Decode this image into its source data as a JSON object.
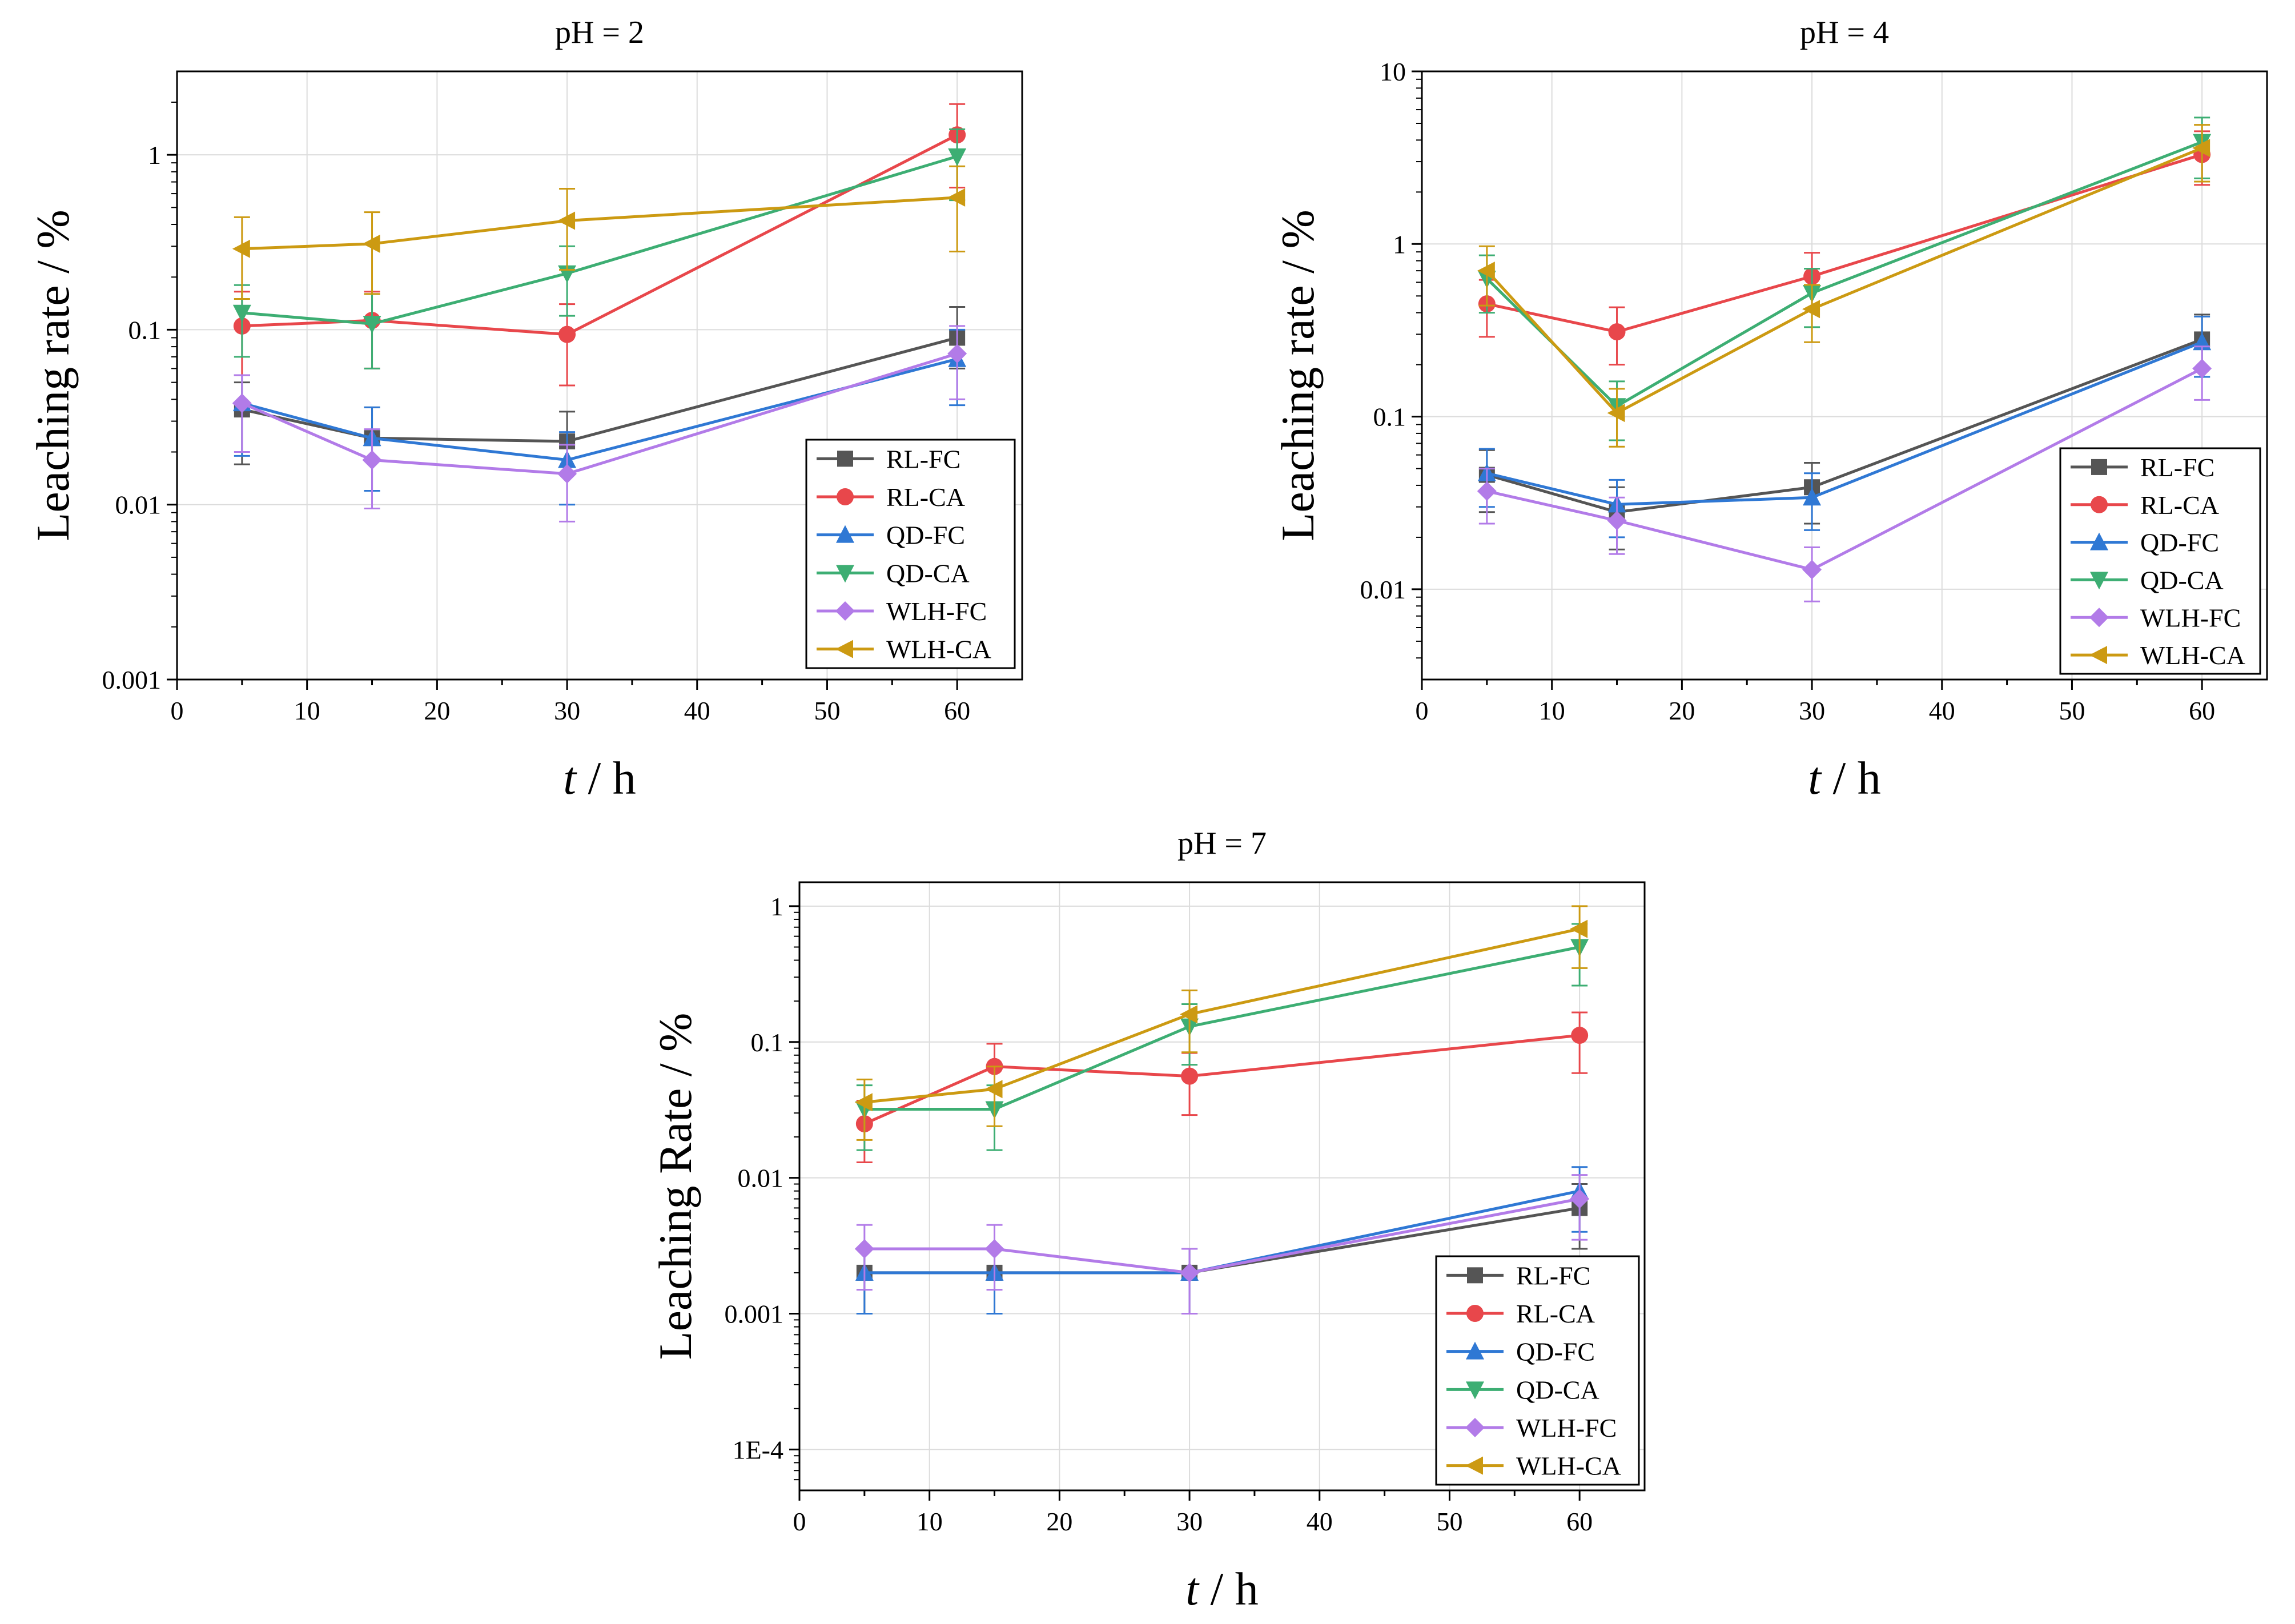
{
  "colors": {
    "RL-FC": "#555555",
    "RL-CA": "#e8474b",
    "QD-FC": "#2f78d4",
    "QD-CA": "#3dae73",
    "WLH-FC": "#b27be8",
    "WLH-CA": "#cc9a12"
  },
  "chart_data": [
    {
      "type": "line",
      "title": "pH = 2",
      "xlabel_var": "t",
      "xlabel_unit": " / h",
      "ylabel": "Leaching rate / %",
      "x": [
        5,
        15,
        30,
        60
      ],
      "xlim": [
        0,
        65
      ],
      "xticks": [
        0,
        10,
        20,
        30,
        40,
        50,
        60
      ],
      "ylog": true,
      "ylim": [
        0.001,
        3
      ],
      "yticks": [
        0.001,
        0.01,
        0.1,
        1
      ],
      "ytick_labels": [
        "0.001",
        "0.01",
        "0.1",
        "1"
      ],
      "grid": true,
      "legend_position": "lower-right",
      "series": [
        {
          "name": "RL-FC",
          "marker": "square",
          "values": [
            0.035,
            0.024,
            0.023,
            0.09
          ],
          "err_low": [
            0.017,
            0.012,
            0.015,
            0.06
          ],
          "err_high": [
            0.05,
            0.036,
            0.034,
            0.135
          ]
        },
        {
          "name": "RL-CA",
          "marker": "circle",
          "values": [
            0.105,
            0.113,
            0.094,
            1.3
          ],
          "err_low": [
            0.055,
            0.06,
            0.048,
            0.65
          ],
          "err_high": [
            0.165,
            0.165,
            0.14,
            1.95
          ]
        },
        {
          "name": "QD-FC",
          "marker": "triangle-up",
          "values": [
            0.038,
            0.024,
            0.018,
            0.068
          ],
          "err_low": [
            0.019,
            0.012,
            0.01,
            0.037
          ],
          "err_high": [
            0.055,
            0.036,
            0.026,
            0.1
          ]
        },
        {
          "name": "QD-CA",
          "marker": "triangle-down",
          "values": [
            0.125,
            0.108,
            0.21,
            0.98
          ],
          "err_low": [
            0.07,
            0.06,
            0.12,
            0.55
          ],
          "err_high": [
            0.18,
            0.16,
            0.3,
            1.4
          ]
        },
        {
          "name": "WLH-FC",
          "marker": "diamond",
          "values": [
            0.038,
            0.018,
            0.015,
            0.073
          ],
          "err_low": [
            0.02,
            0.0095,
            0.008,
            0.04
          ],
          "err_high": [
            0.055,
            0.027,
            0.022,
            0.105
          ]
        },
        {
          "name": "WLH-CA",
          "marker": "triangle-left",
          "values": [
            0.29,
            0.31,
            0.42,
            0.57
          ],
          "err_low": [
            0.15,
            0.16,
            0.22,
            0.28
          ],
          "err_high": [
            0.44,
            0.47,
            0.64,
            0.86
          ]
        }
      ]
    },
    {
      "type": "line",
      "title": "pH = 4",
      "xlabel_var": "t",
      "xlabel_unit": " / h",
      "ylabel": "Leaching rate / %",
      "x": [
        5,
        15,
        30,
        60
      ],
      "xlim": [
        0,
        65
      ],
      "xticks": [
        0,
        10,
        20,
        30,
        40,
        50,
        60
      ],
      "ylog": true,
      "ylim": [
        0.003,
        10
      ],
      "yticks": [
        0.01,
        0.1,
        1,
        10
      ],
      "ytick_labels": [
        "0.01",
        "0.1",
        "1",
        "10"
      ],
      "grid": true,
      "legend_position": "lower-right",
      "series": [
        {
          "name": "RL-FC",
          "marker": "square",
          "values": [
            0.046,
            0.028,
            0.039,
            0.28
          ],
          "err_low": [
            0.028,
            0.017,
            0.024,
            0.17
          ],
          "err_high": [
            0.064,
            0.039,
            0.054,
            0.39
          ]
        },
        {
          "name": "RL-CA",
          "marker": "circle",
          "values": [
            0.45,
            0.31,
            0.65,
            3.3
          ],
          "err_low": [
            0.29,
            0.2,
            0.42,
            2.2
          ],
          "err_high": [
            0.62,
            0.43,
            0.89,
            4.5
          ]
        },
        {
          "name": "QD-FC",
          "marker": "triangle-up",
          "values": [
            0.047,
            0.031,
            0.034,
            0.27
          ],
          "err_low": [
            0.03,
            0.02,
            0.022,
            0.17
          ],
          "err_high": [
            0.065,
            0.043,
            0.047,
            0.38
          ]
        },
        {
          "name": "QD-CA",
          "marker": "triangle-down",
          "values": [
            0.63,
            0.115,
            0.52,
            3.9
          ],
          "err_low": [
            0.4,
            0.073,
            0.33,
            2.4
          ],
          "err_high": [
            0.86,
            0.16,
            0.72,
            5.4
          ]
        },
        {
          "name": "WLH-FC",
          "marker": "diamond",
          "values": [
            0.037,
            0.025,
            0.013,
            0.19
          ],
          "err_low": [
            0.024,
            0.016,
            0.0085,
            0.125
          ],
          "err_high": [
            0.05,
            0.034,
            0.0175,
            0.255
          ]
        },
        {
          "name": "WLH-CA",
          "marker": "triangle-left",
          "values": [
            0.7,
            0.105,
            0.42,
            3.6
          ],
          "err_low": [
            0.44,
            0.067,
            0.27,
            2.3
          ],
          "err_high": [
            0.97,
            0.145,
            0.58,
            4.9
          ]
        }
      ]
    },
    {
      "type": "line",
      "title": "pH = 7",
      "xlabel_var": "t",
      "xlabel_unit": " / h",
      "ylabel": "Leaching Rate / %",
      "x": [
        5,
        15,
        30,
        60
      ],
      "xlim": [
        0,
        65
      ],
      "xticks": [
        0,
        10,
        20,
        30,
        40,
        50,
        60
      ],
      "ylog": true,
      "ylim": [
        5e-05,
        1.5
      ],
      "yticks": [
        0.0001,
        0.001,
        0.01,
        0.1,
        1
      ],
      "ytick_labels": [
        "1E-4",
        "0.001",
        "0.01",
        "0.1",
        "1"
      ],
      "grid": true,
      "legend_position": "lower-right",
      "series": [
        {
          "name": "RL-FC",
          "marker": "square",
          "values": [
            0.002,
            0.002,
            0.002,
            0.006
          ],
          "err_low": [
            0.001,
            0.001,
            0.001,
            0.003
          ],
          "err_high": [
            0.003,
            0.003,
            0.003,
            0.009
          ]
        },
        {
          "name": "RL-CA",
          "marker": "circle",
          "values": [
            0.025,
            0.066,
            0.056,
            0.112
          ],
          "err_low": [
            0.013,
            0.035,
            0.029,
            0.059
          ],
          "err_high": [
            0.037,
            0.097,
            0.083,
            0.165
          ]
        },
        {
          "name": "QD-FC",
          "marker": "triangle-up",
          "values": [
            0.002,
            0.002,
            0.002,
            0.008
          ],
          "err_low": [
            0.001,
            0.001,
            0.001,
            0.004
          ],
          "err_high": [
            0.003,
            0.003,
            0.003,
            0.012
          ]
        },
        {
          "name": "QD-CA",
          "marker": "triangle-down",
          "values": [
            0.032,
            0.032,
            0.13,
            0.5
          ],
          "err_low": [
            0.016,
            0.016,
            0.068,
            0.26
          ],
          "err_high": [
            0.048,
            0.048,
            0.19,
            0.74
          ]
        },
        {
          "name": "WLH-FC",
          "marker": "diamond",
          "values": [
            0.003,
            0.003,
            0.002,
            0.007
          ],
          "err_low": [
            0.0015,
            0.0015,
            0.001,
            0.0035
          ],
          "err_high": [
            0.0045,
            0.0045,
            0.003,
            0.0105
          ]
        },
        {
          "name": "WLH-CA",
          "marker": "triangle-left",
          "values": [
            0.036,
            0.045,
            0.16,
            0.68
          ],
          "err_low": [
            0.019,
            0.024,
            0.084,
            0.35
          ],
          "err_high": [
            0.053,
            0.066,
            0.24,
            1.0
          ]
        }
      ]
    }
  ]
}
